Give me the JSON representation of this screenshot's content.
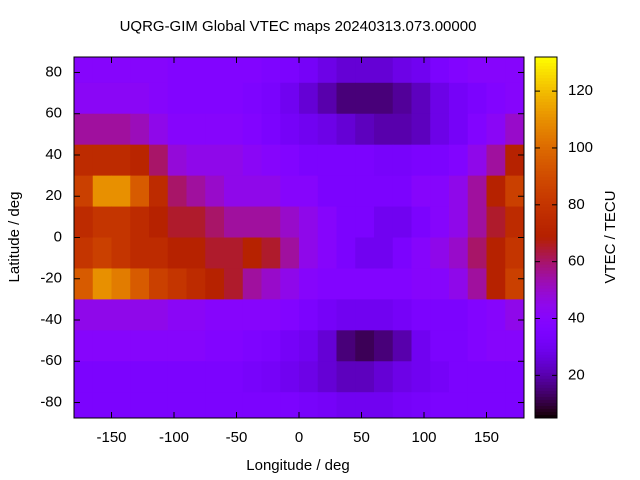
{
  "chart_data": {
    "type": "heatmap",
    "title": "UQRG-GIM Global VTEC maps 20240313.073.00000",
    "x_label": "Longitude / deg",
    "y_label": "Latitude / deg",
    "colorbar_label": "VTEC / TECU",
    "palette": "rgbformulae 7,5,15",
    "x": [
      -172.5,
      -157.5,
      -142.5,
      -127.5,
      -112.5,
      -97.5,
      -82.5,
      -67.5,
      -52.5,
      -37.5,
      -22.5,
      -7.5,
      7.5,
      22.5,
      37.5,
      52.5,
      67.5,
      82.5,
      97.5,
      112.5,
      127.5,
      142.5,
      157.5,
      172.5
    ],
    "y": [
      82.5,
      67.5,
      52.5,
      37.5,
      22.5,
      7.5,
      -7.5,
      -22.5,
      -37.5,
      -52.5,
      -67.5,
      -82.5
    ],
    "values": [
      [
        40,
        40,
        40,
        40,
        40,
        38,
        38,
        38,
        38,
        38,
        36,
        35,
        32,
        28,
        25,
        25,
        25,
        28,
        30,
        35,
        38,
        40,
        40,
        40
      ],
      [
        42,
        42,
        42,
        42,
        40,
        38,
        38,
        38,
        38,
        36,
        34,
        30,
        25,
        20,
        15,
        15,
        15,
        18,
        22,
        28,
        32,
        35,
        38,
        40
      ],
      [
        55,
        55,
        55,
        52,
        45,
        40,
        40,
        40,
        40,
        38,
        35,
        32,
        30,
        28,
        25,
        22,
        20,
        20,
        22,
        28,
        32,
        38,
        42,
        50
      ],
      [
        75,
        75,
        75,
        72,
        60,
        48,
        45,
        45,
        45,
        42,
        40,
        38,
        35,
        35,
        35,
        35,
        33,
        33,
        35,
        35,
        38,
        45,
        55,
        70
      ],
      [
        85,
        110,
        110,
        95,
        75,
        60,
        55,
        50,
        45,
        45,
        45,
        40,
        40,
        35,
        35,
        35,
        35,
        35,
        40,
        40,
        45,
        55,
        70,
        85
      ],
      [
        75,
        80,
        80,
        75,
        70,
        65,
        65,
        60,
        55,
        55,
        55,
        50,
        45,
        40,
        35,
        35,
        30,
        30,
        35,
        40,
        45,
        55,
        65,
        75
      ],
      [
        80,
        85,
        80,
        75,
        75,
        70,
        70,
        65,
        65,
        70,
        65,
        55,
        45,
        40,
        35,
        30,
        30,
        35,
        40,
        45,
        50,
        60,
        70,
        80
      ],
      [
        95,
        110,
        105,
        95,
        85,
        80,
        75,
        70,
        65,
        55,
        50,
        45,
        40,
        38,
        38,
        38,
        38,
        38,
        40,
        40,
        45,
        55,
        70,
        85
      ],
      [
        45,
        45,
        45,
        45,
        45,
        42,
        42,
        40,
        40,
        40,
        40,
        38,
        35,
        32,
        30,
        30,
        30,
        32,
        35,
        35,
        35,
        38,
        40,
        45
      ],
      [
        40,
        40,
        40,
        40,
        40,
        40,
        40,
        38,
        38,
        36,
        35,
        32,
        30,
        25,
        15,
        12,
        15,
        20,
        30,
        35,
        35,
        38,
        40,
        40
      ],
      [
        35,
        35,
        35,
        35,
        35,
        35,
        35,
        35,
        35,
        33,
        32,
        30,
        28,
        25,
        22,
        22,
        25,
        28,
        30,
        32,
        35,
        35,
        35,
        35
      ],
      [
        35,
        35,
        35,
        35,
        35,
        35,
        35,
        35,
        35,
        35,
        35,
        35,
        33,
        32,
        30,
        30,
        30,
        32,
        33,
        35,
        35,
        35,
        35,
        35
      ]
    ],
    "xlim": [
      -180,
      180
    ],
    "ylim": [
      -87.5,
      87.5
    ],
    "cblim": [
      5,
      132
    ],
    "xticks": [
      -150,
      -100,
      -50,
      0,
      50,
      100,
      150
    ],
    "yticks": [
      -80,
      -60,
      -40,
      -20,
      0,
      20,
      40,
      60,
      80
    ],
    "cbticks": [
      20,
      40,
      60,
      80,
      100,
      120
    ]
  }
}
